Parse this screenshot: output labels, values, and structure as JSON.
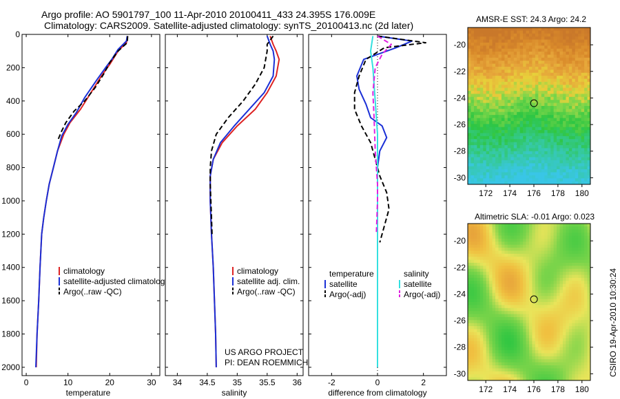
{
  "header": {
    "line1": "Argo profile: AO 5901797_100 11-Apr-2010 20100411_433 24.395S 176.009E",
    "line2": "Climatology: CARS2009. Satellite-adjusted climatology: synTS_20100413.nc (2d later)"
  },
  "side_text": "CSIRO 19-Apr-2010 10:30:24",
  "credit": {
    "line1": "US ARGO PROJECT",
    "line2": "PI: DEAN ROEMMICH"
  },
  "colors": {
    "red": "#dd2222",
    "blue": "#1a2fd6",
    "black": "#000000",
    "cyan": "#33e0e0",
    "magenta": "#e020e0"
  },
  "chart_data": [
    {
      "type": "line",
      "xlabel": "temperature",
      "xlim": [
        -1,
        32
      ],
      "ylim": [
        2050,
        0
      ],
      "xticks": [
        0,
        10,
        20,
        30
      ],
      "yticks": [
        0,
        200,
        400,
        600,
        800,
        1000,
        1200,
        1400,
        1600,
        1800,
        2000
      ],
      "legend": [
        "climatology",
        "satellite-adjusted climatology",
        "Argo(..raw -QC)"
      ],
      "series": [
        {
          "name": "climatology",
          "color": "red",
          "dash": false,
          "points": [
            [
              24.3,
              10
            ],
            [
              24.0,
              50
            ],
            [
              22.0,
              100
            ],
            [
              20.0,
              180
            ],
            [
              18.0,
              250
            ],
            [
              15.5,
              350
            ],
            [
              13.0,
              450
            ],
            [
              10.5,
              530
            ],
            [
              9.0,
              600
            ],
            [
              7.5,
              700
            ],
            [
              6.5,
              800
            ],
            [
              5.5,
              900
            ],
            [
              4.8,
              1000
            ],
            [
              4.2,
              1100
            ],
            [
              3.7,
              1200
            ],
            [
              3.3,
              1400
            ],
            [
              3.0,
              1600
            ],
            [
              2.6,
              1800
            ],
            [
              2.4,
              2000
            ]
          ]
        },
        {
          "name": "satellite-adjusted climatology",
          "color": "blue",
          "dash": false,
          "points": [
            [
              24.2,
              10
            ],
            [
              24.0,
              40
            ],
            [
              22.0,
              90
            ],
            [
              20.5,
              150
            ],
            [
              19.0,
              200
            ],
            [
              17.0,
              270
            ],
            [
              14.0,
              380
            ],
            [
              12.0,
              470
            ],
            [
              10.0,
              540
            ],
            [
              8.5,
              610
            ],
            [
              7.5,
              700
            ],
            [
              6.5,
              800
            ],
            [
              5.5,
              900
            ],
            [
              4.8,
              1000
            ],
            [
              4.2,
              1100
            ],
            [
              3.7,
              1200
            ],
            [
              3.3,
              1400
            ],
            [
              3.0,
              1600
            ],
            [
              2.6,
              1800
            ],
            [
              2.3,
              2000
            ]
          ]
        },
        {
          "name": "Argo(..raw -QC)",
          "color": "black",
          "dash": true,
          "points": [
            [
              24.3,
              10
            ],
            [
              24.2,
              50
            ],
            [
              22.0,
              100
            ],
            [
              20.0,
              170
            ],
            [
              18.5,
              240
            ],
            [
              16.5,
              320
            ],
            [
              14.0,
              400
            ],
            [
              11.5,
              460
            ],
            [
              9.5,
              530
            ],
            [
              8.5,
              580
            ],
            [
              7.5,
              640
            ]
          ]
        }
      ]
    },
    {
      "type": "line",
      "xlabel": "salinity",
      "xlim": [
        33.8,
        36.1
      ],
      "ylim": [
        2050,
        0
      ],
      "xticks": [
        34,
        34.5,
        35,
        35.5,
        36
      ],
      "legend": [
        "climatology",
        "satellite adj. clim.",
        "Argo(..raw -QC)"
      ],
      "series": [
        {
          "name": "climatology",
          "color": "red",
          "dash": false,
          "points": [
            [
              35.55,
              10
            ],
            [
              35.6,
              60
            ],
            [
              35.65,
              100
            ],
            [
              35.7,
              150
            ],
            [
              35.65,
              250
            ],
            [
              35.5,
              350
            ],
            [
              35.3,
              450
            ],
            [
              35.0,
              550
            ],
            [
              34.75,
              650
            ],
            [
              34.6,
              750
            ],
            [
              34.55,
              850
            ],
            [
              34.55,
              1000
            ],
            [
              34.57,
              1200
            ],
            [
              34.6,
              1400
            ],
            [
              34.62,
              1600
            ],
            [
              34.64,
              1800
            ],
            [
              34.65,
              2000
            ]
          ]
        },
        {
          "name": "satellite adj. clim.",
          "color": "blue",
          "dash": false,
          "points": [
            [
              35.5,
              10
            ],
            [
              35.55,
              60
            ],
            [
              35.6,
              100
            ],
            [
              35.62,
              150
            ],
            [
              35.6,
              250
            ],
            [
              35.45,
              350
            ],
            [
              35.2,
              450
            ],
            [
              34.95,
              550
            ],
            [
              34.72,
              650
            ],
            [
              34.6,
              750
            ],
            [
              34.55,
              850
            ],
            [
              34.55,
              1000
            ],
            [
              34.57,
              1200
            ],
            [
              34.6,
              1400
            ],
            [
              34.62,
              1600
            ],
            [
              34.64,
              1800
            ],
            [
              34.65,
              2000
            ]
          ]
        },
        {
          "name": "Argo(..raw -QC)",
          "color": "black",
          "dash": true,
          "points": [
            [
              35.6,
              10
            ],
            [
              35.5,
              60
            ],
            [
              35.5,
              100
            ],
            [
              35.45,
              200
            ],
            [
              35.3,
              300
            ],
            [
              35.1,
              400
            ],
            [
              34.85,
              500
            ],
            [
              34.65,
              600
            ],
            [
              34.57,
              700
            ],
            [
              34.55,
              800
            ],
            [
              34.55,
              900
            ],
            [
              34.56,
              1000
            ],
            [
              34.57,
              1100
            ],
            [
              34.58,
              1200
            ]
          ]
        }
      ]
    },
    {
      "type": "line",
      "xlabel": "difference from climatology",
      "xlim": [
        -3,
        3
      ],
      "ylim": [
        2050,
        0
      ],
      "xticks": [
        -2,
        0,
        2
      ],
      "legend_groups": [
        {
          "heading": "temperature",
          "items": [
            "satellite",
            "Argo(-adj)"
          ]
        },
        {
          "heading": "salinity",
          "items": [
            "satellite",
            "Argo(-adj)"
          ]
        }
      ],
      "series": [
        {
          "name": "satellite",
          "color": "blue",
          "dash": false,
          "points": [
            [
              0,
              10
            ],
            [
              1.5,
              40
            ],
            [
              0.8,
              80
            ],
            [
              -0.6,
              150
            ],
            [
              -0.9,
              250
            ],
            [
              -0.8,
              330
            ],
            [
              -0.5,
              420
            ],
            [
              -0.3,
              500
            ],
            [
              0.2,
              550
            ],
            [
              0.4,
              620
            ],
            [
              0.1,
              700
            ],
            [
              0,
              800
            ],
            [
              0,
              900
            ],
            [
              0,
              1000
            ],
            [
              0,
              1200
            ],
            [
              0,
              1400
            ],
            [
              0,
              1600
            ],
            [
              0,
              1800
            ],
            [
              0,
              2000
            ]
          ]
        },
        {
          "name": "Argo(-adj)",
          "color": "black",
          "dash": true,
          "points": [
            [
              0,
              10
            ],
            [
              2.1,
              50
            ],
            [
              0.3,
              80
            ],
            [
              -0.5,
              150
            ],
            [
              -0.8,
              250
            ],
            [
              -1.0,
              350
            ],
            [
              -1.0,
              450
            ],
            [
              -0.7,
              550
            ],
            [
              -0.3,
              650
            ],
            [
              -0.1,
              750
            ],
            [
              0.1,
              850
            ],
            [
              0.4,
              950
            ],
            [
              0.5,
              1050
            ],
            [
              0.3,
              1150
            ],
            [
              0.1,
              1250
            ]
          ]
        },
        {
          "name": "satellite",
          "color": "cyan",
          "dash": false,
          "points": [
            [
              -0.2,
              10
            ],
            [
              -0.3,
              100
            ],
            [
              -0.2,
              200
            ],
            [
              -0.1,
              400
            ],
            [
              0,
              600
            ],
            [
              0,
              1000
            ],
            [
              0,
              1400
            ],
            [
              0,
              1800
            ],
            [
              0,
              2000
            ]
          ]
        },
        {
          "name": "Argo(-adj)",
          "color": "magenta",
          "dash": true,
          "points": [
            [
              0,
              10
            ],
            [
              0.6,
              60
            ],
            [
              0.2,
              120
            ],
            [
              -0.1,
              200
            ],
            [
              -0.2,
              350
            ],
            [
              -0.15,
              500
            ],
            [
              -0.1,
              700
            ],
            [
              0,
              900
            ],
            [
              0,
              1000
            ],
            [
              -0.05,
              1200
            ]
          ]
        }
      ]
    },
    {
      "type": "heatmap",
      "title": "AMSR-E SST: 24.3 Argo: 24.2",
      "xlim": [
        170.5,
        180.7
      ],
      "ylim": [
        -30.5,
        -18.7
      ],
      "xticks": [
        172,
        174,
        176,
        178,
        180
      ],
      "yticks": [
        -20,
        -22,
        -24,
        -26,
        -28,
        -30
      ],
      "marker": {
        "lon": 176.009,
        "lat": -24.395
      }
    },
    {
      "type": "heatmap",
      "title": "Altimetric SLA: -0.01 Argo: 0.023",
      "xlim": [
        170.5,
        180.7
      ],
      "ylim": [
        -30.5,
        -18.7
      ],
      "xticks": [
        172,
        174,
        176,
        178,
        180
      ],
      "yticks": [
        -20,
        -22,
        -24,
        -26,
        -28,
        -30
      ],
      "marker": {
        "lon": 176.009,
        "lat": -24.395
      }
    }
  ]
}
